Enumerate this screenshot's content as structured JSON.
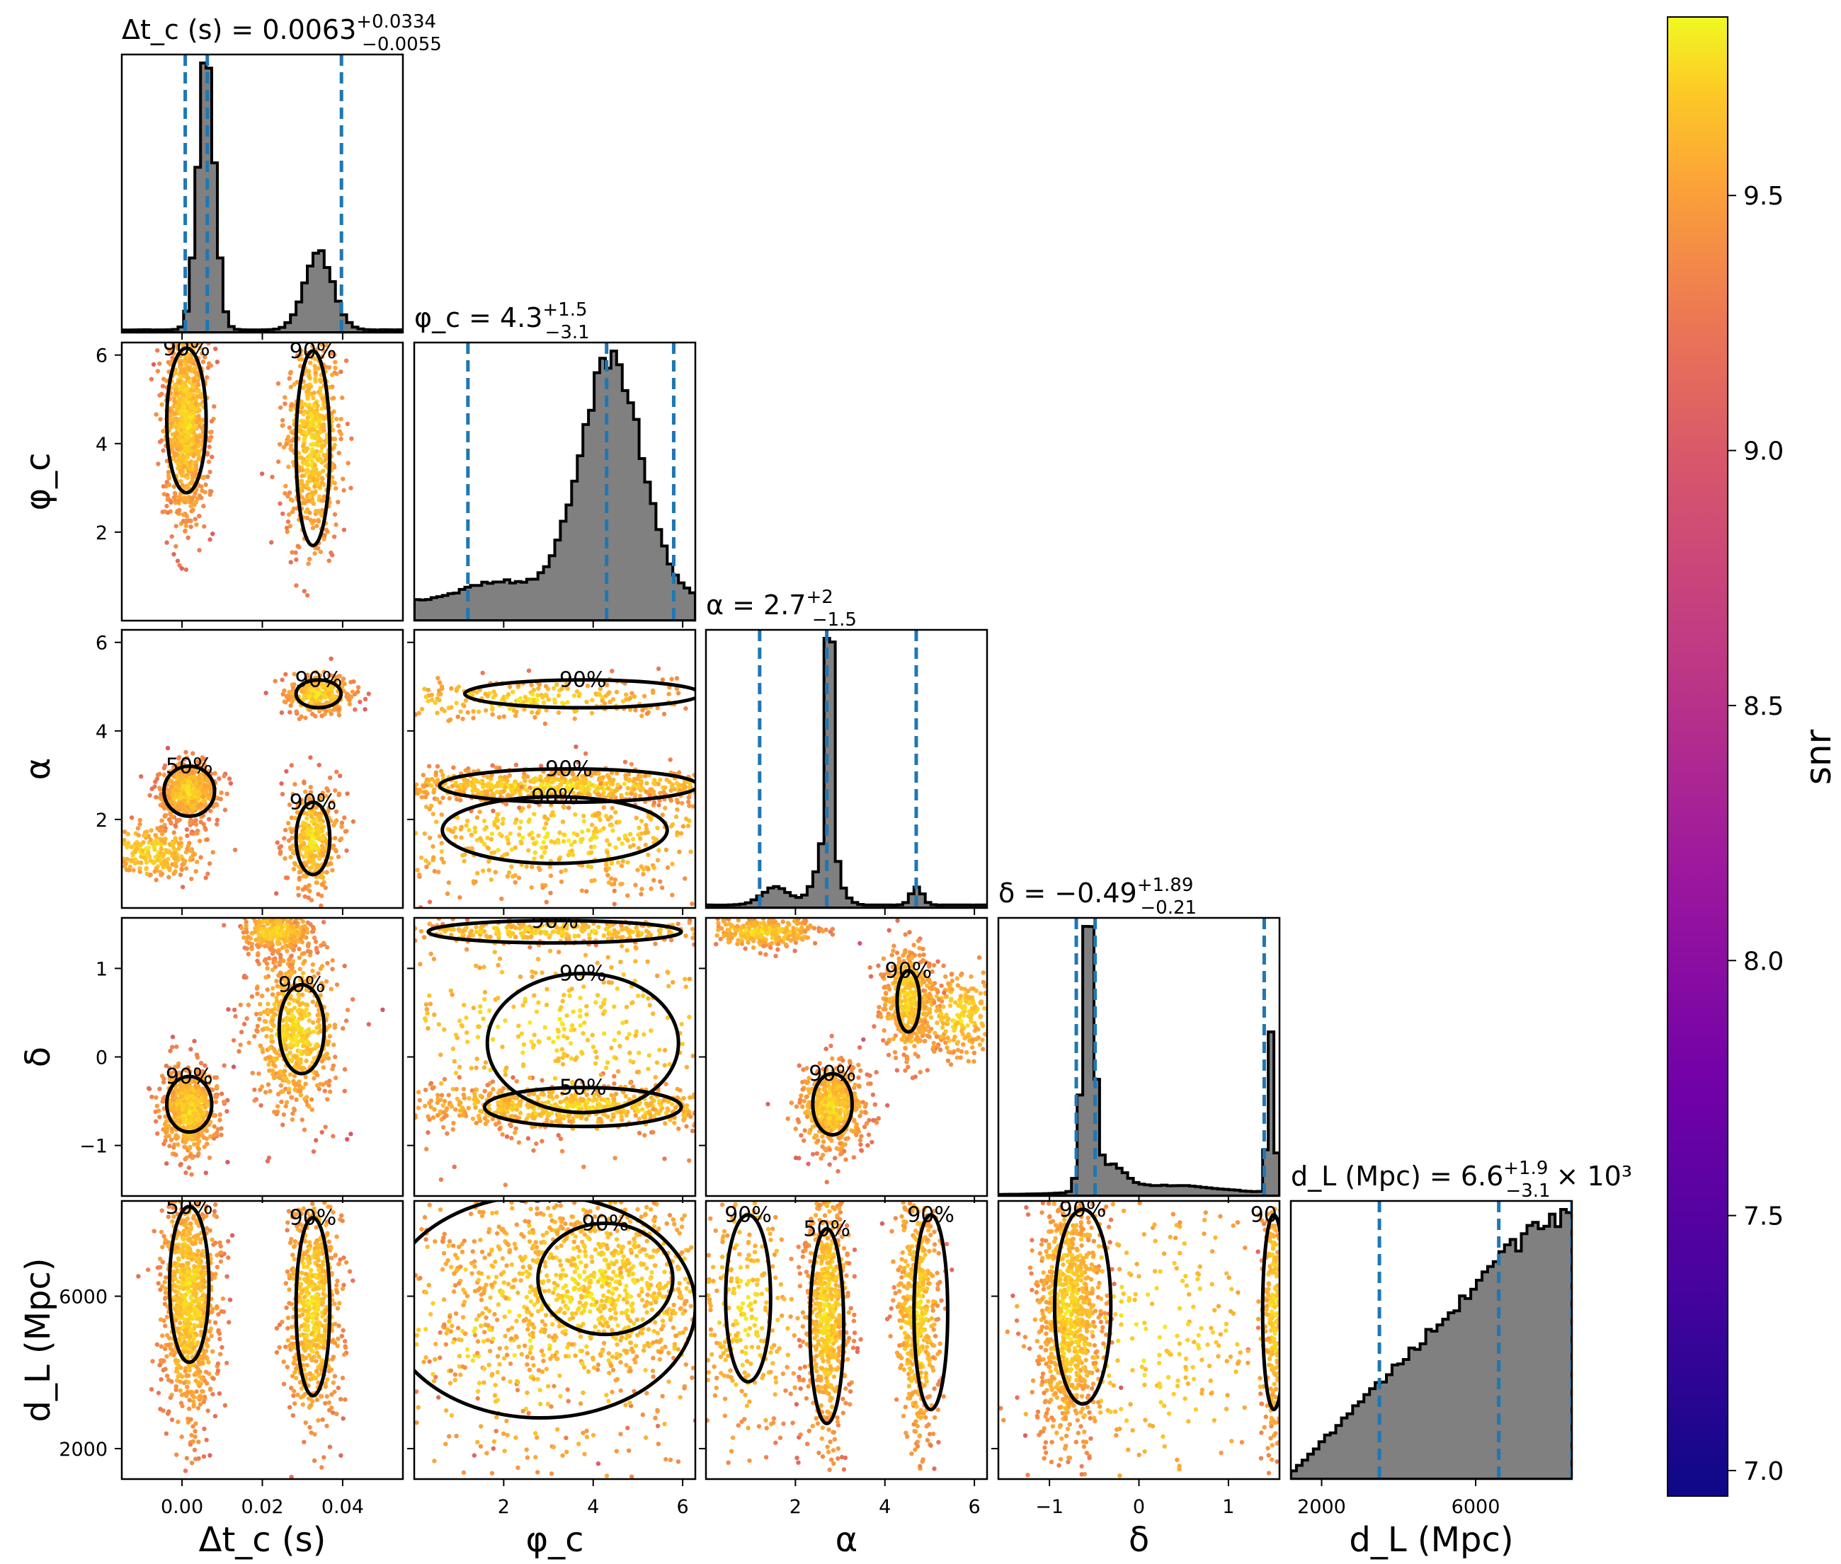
{
  "chart_data": {
    "type": "scatter",
    "title": "",
    "parameters": [
      {
        "key": "dtc",
        "axis_label": "Δt_c (s)",
        "range": [
          -0.015,
          0.055
        ],
        "ticks": [
          0.0,
          0.02,
          0.04
        ],
        "tick_labels": [
          "0.00",
          "0.02",
          "0.04"
        ],
        "title_prefix": "Δt_c (s) = 0.0063",
        "title_plus": "+0.0334",
        "title_minus": "−0.0055",
        "title_suffix": "",
        "quantiles": [
          0.0008,
          0.0063,
          0.0397
        ]
      },
      {
        "key": "phic",
        "axis_label": "φ_c",
        "range": [
          0.0,
          6.2832
        ],
        "ticks": [
          2,
          4,
          6
        ],
        "tick_labels": [
          "2",
          "4",
          "6"
        ],
        "title_prefix": "φ_c = 4.3",
        "title_plus": "+1.5",
        "title_minus": "−3.1",
        "title_suffix": "",
        "quantiles": [
          1.2,
          4.3,
          5.8
        ]
      },
      {
        "key": "alpha",
        "axis_label": "α",
        "range": [
          0.0,
          6.2832
        ],
        "ticks": [
          2,
          4,
          6
        ],
        "tick_labels": [
          "2",
          "4",
          "6"
        ],
        "title_prefix": "α = 2.7",
        "title_plus": "+2",
        "title_minus": "−1.5",
        "title_suffix": "",
        "quantiles": [
          1.2,
          2.7,
          4.7
        ]
      },
      {
        "key": "delta",
        "axis_label": "δ",
        "range": [
          -1.5708,
          1.5708
        ],
        "ticks": [
          -1,
          0,
          1
        ],
        "tick_labels": [
          "−1",
          "0",
          "1"
        ],
        "title_prefix": "δ = −0.49",
        "title_plus": "+1.89",
        "title_minus": "−0.21",
        "title_suffix": "",
        "quantiles": [
          -0.7,
          -0.49,
          1.4
        ]
      },
      {
        "key": "dl",
        "axis_label": "d_L (Mpc)",
        "range": [
          1200,
          8500
        ],
        "ticks": [
          2000,
          6000
        ],
        "tick_labels": [
          "2000",
          "6000"
        ],
        "title_prefix": "d_L (Mpc) = 6.6",
        "title_plus": "+1.9",
        "title_minus": "−3.1",
        "title_suffix": "× 10³",
        "quantiles": [
          3500,
          6600,
          8500
        ]
      }
    ],
    "row_tick_labels": {
      "phic": [
        "2",
        "4",
        "6"
      ],
      "alpha": [
        "2",
        "4",
        "6"
      ],
      "delta": [
        "−1",
        "0",
        "1"
      ],
      "dl": [
        "2000",
        "6000"
      ]
    },
    "contour_labels": [
      "50%",
      "90%"
    ],
    "colorbar": {
      "label": "snr",
      "range": [
        6.95,
        9.85
      ],
      "ticks": [
        7.0,
        7.5,
        8.0,
        8.5,
        9.0,
        9.5
      ],
      "tick_labels": [
        "7.0",
        "7.5",
        "8.0",
        "8.5",
        "9.0",
        "9.5"
      ],
      "colormap": "plasma"
    },
    "colors": {
      "quantile_line": "#1f77b4",
      "histogram": "#808080",
      "contour": "#000000"
    }
  }
}
